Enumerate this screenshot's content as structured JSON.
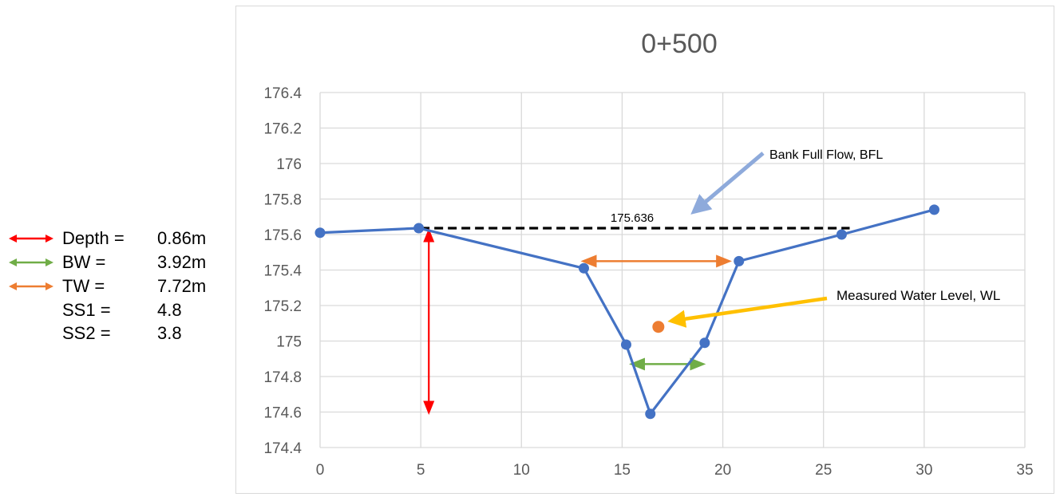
{
  "legend": {
    "items": [
      {
        "label": "Depth =",
        "value": "0.86m",
        "arrow_color": "#ff0000"
      },
      {
        "label": "BW =",
        "value": "3.92m",
        "arrow_color": "#70ad47"
      },
      {
        "label": "TW =",
        "value": "7.72m",
        "arrow_color": "#ed7d31"
      },
      {
        "label": "SS1 =",
        "value": "4.8",
        "arrow_color": ""
      },
      {
        "label": "SS2 =",
        "value": "3.8",
        "arrow_color": ""
      }
    ]
  },
  "chart_data": {
    "type": "scatter",
    "title": "0+500",
    "xlabel": "",
    "ylabel": "",
    "xlim": [
      0,
      35
    ],
    "ylim": [
      174.4,
      176.4
    ],
    "x_ticks": [
      "0",
      "5",
      "10",
      "15",
      "20",
      "25",
      "30",
      "35"
    ],
    "y_ticks": [
      "176.4",
      "176.2",
      "176",
      "175.8",
      "175.6",
      "175.4",
      "175.2",
      "175",
      "174.8",
      "174.6",
      "174.4"
    ],
    "grid": true,
    "series": [
      {
        "color": "#4472c4",
        "points": [
          {
            "x": 0,
            "y": 175.61
          },
          {
            "x": 4.9,
            "y": 175.636
          },
          {
            "x": 13.1,
            "y": 175.41
          },
          {
            "x": 15.2,
            "y": 174.98
          },
          {
            "x": 16.4,
            "y": 174.59
          },
          {
            "x": 19.1,
            "y": 174.99
          },
          {
            "x": 20.8,
            "y": 175.45
          },
          {
            "x": 25.9,
            "y": 175.6
          },
          {
            "x": 30.5,
            "y": 175.74
          }
        ]
      }
    ],
    "water_level_point": {
      "x": 16.8,
      "y": 175.08,
      "color": "#ed7d31"
    },
    "bfl_line": {
      "y": 175.636,
      "x_start": 5,
      "x_end": 26.3,
      "color": "#000000",
      "label": "175.636"
    },
    "annotations": {
      "bfl_text": "Bank Full Flow, BFL",
      "wl_text": "Measured Water Level, WL",
      "bfl_arrow_color": "#8eaadb",
      "wl_arrow_color": "#ffc000"
    },
    "dimension_arrows": {
      "depth": {
        "x": 5.4,
        "y1": 174.6,
        "y2": 175.62,
        "color": "#ff0000"
      },
      "top_width": {
        "y": 175.45,
        "x1": 13.1,
        "x2": 20.3,
        "color": "#ed7d31"
      },
      "bottom_width": {
        "y": 174.87,
        "x1": 15.5,
        "x2": 19.0,
        "color": "#70ad47"
      }
    }
  }
}
